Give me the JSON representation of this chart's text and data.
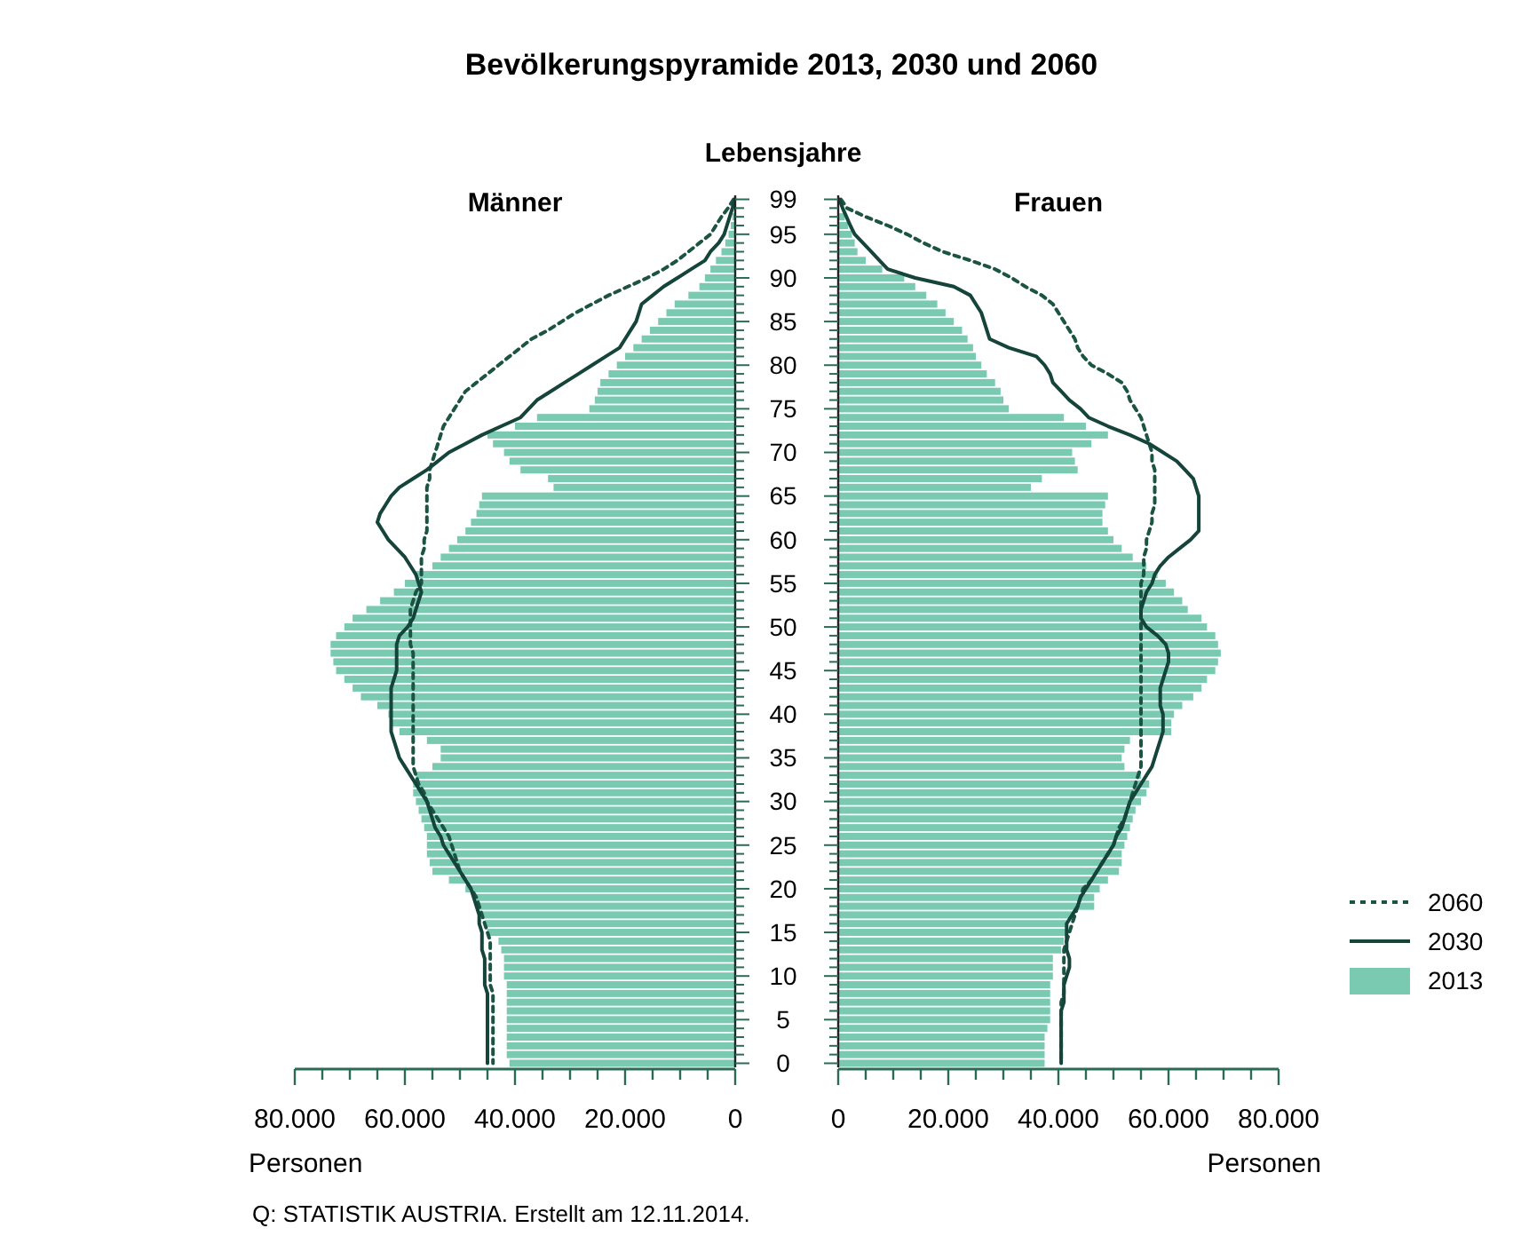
{
  "chart_data": [
    {
      "type": "bar",
      "orientation": "horizontal",
      "title": "Bevölkerungspyramide 2013, 2030 und 2060",
      "subtitle": "Männer",
      "ylabel": "Lebensjahre",
      "xlabel": "Personen",
      "annotations": [
        "Q: STATISTIK AUSTRIA. Erstellt am 12.11.2014."
      ],
      "categories": [
        "99",
        null,
        null,
        null,
        "95",
        null,
        null,
        null,
        null,
        "90",
        null,
        null,
        null,
        null,
        "85",
        null,
        null,
        null,
        null,
        "80",
        null,
        null,
        null,
        null,
        "75",
        null,
        null,
        null,
        null,
        "70",
        null,
        null,
        null,
        null,
        "65",
        null,
        null,
        null,
        null,
        "60",
        null,
        null,
        null,
        null,
        "55",
        null,
        null,
        null,
        null,
        "50",
        null,
        null,
        null,
        null,
        "45",
        null,
        null,
        null,
        null,
        "40",
        null,
        null,
        null,
        null,
        "35",
        null,
        null,
        null,
        null,
        "30",
        null,
        null,
        null,
        null,
        "25",
        null,
        null,
        null,
        null,
        "20",
        null,
        null,
        null,
        null,
        "15",
        null,
        null,
        null,
        null,
        "10",
        null,
        null,
        null,
        null,
        "5",
        null,
        null,
        null,
        null,
        "0"
      ],
      "xlim": [
        80000,
        0
      ],
      "xticks": [
        {
          "value": 80000,
          "label": "80.000"
        },
        {
          "value": 75000,
          "label": null
        },
        {
          "value": 70000,
          "label": null
        },
        {
          "value": 65000,
          "label": null
        },
        {
          "value": 60000,
          "label": "60.000"
        },
        {
          "value": 55000,
          "label": null
        },
        {
          "value": 50000,
          "label": null
        },
        {
          "value": 45000,
          "label": null
        },
        {
          "value": 40000,
          "label": "40.000"
        },
        {
          "value": 35000,
          "label": null
        },
        {
          "value": 30000,
          "label": null
        },
        {
          "value": 25000,
          "label": null
        },
        {
          "value": 20000,
          "label": "20.000"
        },
        {
          "value": 15000,
          "label": null
        },
        {
          "value": 10000,
          "label": null
        },
        {
          "value": 5000,
          "label": null
        },
        0
      ],
      "series": [
        {
          "type": "line",
          "line_style": "dashed",
          "color": "#1b5443",
          "values": [
            300,
            1300,
            2500,
            3500,
            4500,
            6500,
            8500,
            10500,
            13000,
            16000,
            19500,
            23000,
            26000,
            29000,
            31500,
            34000,
            37000,
            39000,
            41000,
            43000,
            45000,
            47000,
            49000,
            50000,
            51000,
            52000,
            53000,
            53500,
            54000,
            54500,
            55000,
            55500,
            55500,
            56000,
            56000,
            56000,
            56000,
            56000,
            56000,
            56500,
            56500,
            57000,
            57000,
            57000,
            57000,
            58000,
            58500,
            59000,
            59000,
            59000,
            59000,
            59000,
            58500,
            58500,
            58500,
            58500,
            58500,
            58500,
            58500,
            58500,
            58500,
            58500,
            58500,
            58500,
            58500,
            58500,
            58000,
            57500,
            56500,
            56000,
            55000,
            54000,
            53000,
            52000,
            51500,
            51000,
            50500,
            50000,
            49000,
            48000,
            47000,
            46500,
            46000,
            45500,
            45000,
            44500,
            44500,
            44500,
            44500,
            44500,
            44500,
            44000,
            44000,
            44000,
            44000,
            44000,
            44000,
            44000,
            44000,
            44000
          ]
        },
        {
          "type": "line",
          "line_style": "solid",
          "color": "#14443a",
          "values": [
            100,
            500,
            1000,
            1500,
            2000,
            3000,
            4500,
            5500,
            8000,
            10500,
            13000,
            15000,
            17000,
            17500,
            18000,
            19000,
            20000,
            21000,
            23500,
            26000,
            28500,
            31000,
            33500,
            36000,
            37500,
            39000,
            42500,
            46000,
            49000,
            52000,
            54000,
            56000,
            58500,
            61000,
            62500,
            63500,
            64500,
            65000,
            64000,
            63000,
            61500,
            60000,
            59000,
            58000,
            57500,
            57000,
            57500,
            58000,
            58500,
            59500,
            61000,
            61500,
            61500,
            61500,
            61500,
            62000,
            62500,
            62500,
            62500,
            62500,
            62500,
            62500,
            62000,
            61500,
            61000,
            60000,
            59000,
            58000,
            57000,
            56000,
            55500,
            55000,
            54500,
            53500,
            53000,
            52000,
            51000,
            50000,
            49000,
            48000,
            47500,
            47000,
            46500,
            46500,
            46000,
            46000,
            46000,
            45500,
            45500,
            45500,
            45500,
            45000,
            45000,
            45000,
            45000,
            45000,
            45000,
            45000,
            45000,
            45000
          ]
        },
        {
          "type": "bar",
          "color": "#7acab2",
          "values": [
            null,
            null,
            500,
            800,
            1200,
            1800,
            2500,
            3500,
            4500,
            5500,
            6500,
            8500,
            11000,
            12500,
            14000,
            15500,
            17000,
            18500,
            20000,
            21500,
            23000,
            24500,
            25000,
            25500,
            26500,
            36000,
            40000,
            45000,
            44000,
            42000,
            41000,
            39000,
            34000,
            33000,
            46000,
            46500,
            47000,
            48000,
            49000,
            50500,
            52000,
            53500,
            55000,
            58000,
            60000,
            62000,
            64500,
            67000,
            69500,
            71000,
            72500,
            73500,
            73500,
            73000,
            72500,
            71000,
            69500,
            68000,
            65000,
            63000,
            62500,
            61000,
            56000,
            53500,
            53500,
            55000,
            58000,
            58500,
            58500,
            58000,
            57500,
            57000,
            56500,
            56000,
            56000,
            56000,
            55500,
            55000,
            52000,
            49000,
            47000,
            46500,
            46000,
            45500,
            45000,
            43000,
            42500,
            42000,
            42000,
            42000,
            41500,
            41500,
            41500,
            41500,
            41500,
            41500,
            41500,
            41500,
            41500,
            41000
          ]
        }
      ]
    },
    {
      "type": "bar",
      "orientation": "horizontal",
      "subtitle": "Frauen",
      "xlabel": "Personen",
      "tick_labels": "x",
      "legend": "right",
      "categories": [
        "99",
        null,
        null,
        null,
        "95",
        null,
        null,
        null,
        null,
        "90",
        null,
        null,
        null,
        null,
        "85",
        null,
        null,
        null,
        null,
        "80",
        null,
        null,
        null,
        null,
        "75",
        null,
        null,
        null,
        null,
        "70",
        null,
        null,
        null,
        null,
        "65",
        null,
        null,
        null,
        null,
        "60",
        null,
        null,
        null,
        null,
        "55",
        null,
        null,
        null,
        null,
        "50",
        null,
        null,
        null,
        null,
        "45",
        null,
        null,
        null,
        null,
        "40",
        null,
        null,
        null,
        null,
        "35",
        null,
        null,
        null,
        null,
        "30",
        null,
        null,
        null,
        null,
        "25",
        null,
        null,
        null,
        null,
        "20",
        null,
        null,
        null,
        null,
        "15",
        null,
        null,
        null,
        null,
        "10",
        null,
        null,
        null,
        null,
        "5",
        null,
        null,
        null,
        null,
        "0"
      ],
      "xlim": [
        0,
        80000
      ],
      "xticks": [
        0,
        {
          "value": 5000,
          "label": null
        },
        {
          "value": 10000,
          "label": null
        },
        {
          "value": 15000,
          "label": null
        },
        {
          "value": 20000,
          "label": "20.000"
        },
        {
          "value": 25000,
          "label": null
        },
        {
          "value": 30000,
          "label": null
        },
        {
          "value": 35000,
          "label": null
        },
        {
          "value": 40000,
          "label": "40.000"
        },
        {
          "value": 45000,
          "label": null
        },
        {
          "value": 50000,
          "label": null
        },
        {
          "value": 55000,
          "label": null
        },
        {
          "value": 60000,
          "label": "60.000"
        },
        {
          "value": 65000,
          "label": null
        },
        {
          "value": 70000,
          "label": null
        },
        {
          "value": 75000,
          "label": null
        },
        {
          "value": 80000,
          "label": "80.000"
        }
      ],
      "series": [
        {
          "name": "2060",
          "type": "line",
          "line_style": "dashed",
          "color": "#1b5443",
          "values": [
            500,
            1600,
            5000,
            9000,
            12500,
            15500,
            19000,
            24000,
            28500,
            31500,
            34000,
            37000,
            39000,
            40000,
            41000,
            42000,
            43000,
            43500,
            44500,
            46000,
            49000,
            51500,
            52500,
            53000,
            54000,
            55000,
            55500,
            56000,
            56500,
            57000,
            57000,
            57500,
            57500,
            57500,
            57500,
            57500,
            57000,
            57000,
            56500,
            56000,
            56000,
            55500,
            55500,
            55500,
            55000,
            55000,
            55000,
            55000,
            55000,
            55000,
            55000,
            55000,
            55000,
            55000,
            55000,
            55000,
            55000,
            55000,
            55000,
            55000,
            55000,
            55000,
            55000,
            55000,
            55000,
            55000,
            54500,
            54000,
            53500,
            53000,
            52500,
            52000,
            51000,
            50500,
            50000,
            49000,
            48000,
            47000,
            46000,
            44500,
            44000,
            43500,
            43000,
            42500,
            42000,
            41500,
            41000,
            41000,
            41000,
            41000,
            41000,
            41000,
            40500,
            40500,
            40500,
            40500,
            40500,
            40500,
            40500,
            40500
          ]
        },
        {
          "name": "2030",
          "type": "line",
          "line_style": "solid",
          "color": "#14443a",
          "values": [
            200,
            800,
            1500,
            2200,
            3000,
            4500,
            6000,
            7500,
            9000,
            14000,
            21000,
            24000,
            25000,
            26000,
            26500,
            27000,
            27500,
            31000,
            36000,
            37500,
            38500,
            39000,
            40500,
            42000,
            44000,
            45500,
            49000,
            53000,
            56500,
            59000,
            61500,
            63000,
            64500,
            65000,
            65500,
            65500,
            65500,
            65500,
            65500,
            64000,
            62000,
            60000,
            58500,
            57500,
            57000,
            56000,
            55500,
            55000,
            55000,
            56000,
            58000,
            59500,
            60000,
            60000,
            59500,
            59000,
            58500,
            58500,
            58500,
            59000,
            59000,
            59000,
            58500,
            58000,
            57500,
            57000,
            56000,
            55000,
            54000,
            53000,
            52500,
            52000,
            51500,
            50500,
            50000,
            49000,
            48000,
            47000,
            46000,
            45000,
            44000,
            43500,
            42500,
            41500,
            41500,
            41500,
            41500,
            42000,
            42000,
            41500,
            41000,
            41000,
            41000,
            40500,
            40500,
            40500,
            40500,
            40500,
            40500,
            40500
          ]
        },
        {
          "name": "2013",
          "type": "bar",
          "color": "#7acab2",
          "values": [
            null,
            null,
            1200,
            1800,
            2500,
            3000,
            3500,
            5000,
            8000,
            12000,
            14000,
            16000,
            18000,
            19500,
            21000,
            22500,
            23500,
            24500,
            25000,
            26000,
            27000,
            28500,
            29500,
            30000,
            31000,
            41000,
            45000,
            49000,
            46000,
            42500,
            43000,
            43500,
            37000,
            35000,
            49000,
            48500,
            48000,
            48000,
            49000,
            50000,
            51500,
            53500,
            56000,
            58000,
            59500,
            61000,
            62500,
            63500,
            66000,
            67000,
            68500,
            69000,
            69500,
            69000,
            68500,
            67000,
            66000,
            64500,
            62500,
            61000,
            60500,
            60500,
            53000,
            52000,
            51500,
            52000,
            55000,
            56500,
            56000,
            55000,
            54000,
            53500,
            53000,
            52500,
            52000,
            51500,
            51500,
            51000,
            49000,
            47500,
            46500,
            46500,
            43000,
            41500,
            41500,
            41000,
            40500,
            39000,
            39000,
            39000,
            38500,
            38500,
            38500,
            38500,
            38500,
            38000,
            37500,
            37500,
            37500,
            37500
          ]
        }
      ]
    }
  ]
}
